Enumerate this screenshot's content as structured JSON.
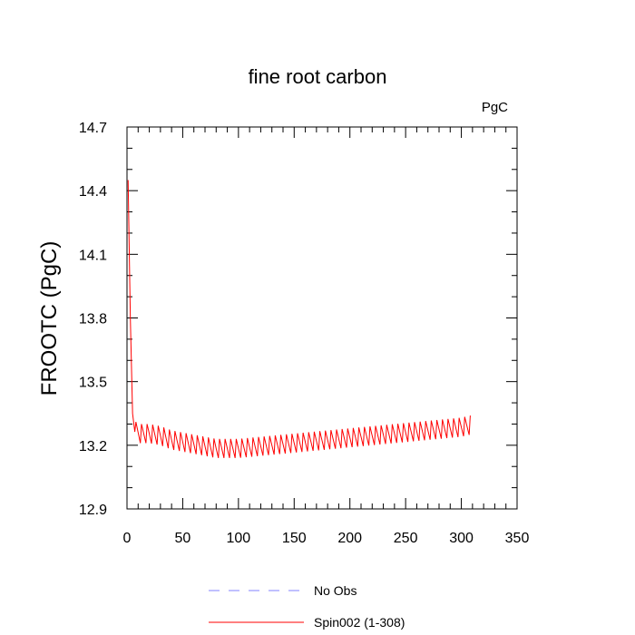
{
  "chart_data": {
    "type": "line",
    "title": "fine root carbon",
    "units_label": "PgC",
    "xlabel": "",
    "ylabel": "FROOTC  (PgC)",
    "xlim": [
      0,
      350
    ],
    "ylim": [
      12.9,
      14.7
    ],
    "x_ticks": [
      0,
      50,
      100,
      150,
      200,
      250,
      300,
      350
    ],
    "y_ticks": [
      12.9,
      13.2,
      13.5,
      13.8,
      14.1,
      14.4,
      14.7
    ],
    "x_tick_labels": [
      "0",
      "50",
      "100",
      "150",
      "200",
      "250",
      "300",
      "350"
    ],
    "y_tick_labels": [
      "12.9",
      "13.2",
      "13.5",
      "13.8",
      "14.1",
      "14.4",
      "14.7"
    ],
    "x_minor_step": 10,
    "y_minor_step": 0.1,
    "seasonal_amplitude": 0.09,
    "cycle_length_years": 5,
    "series": [
      {
        "name": "Spin002 (1-308)",
        "color": "#ff0000",
        "style": "solid",
        "envelope_x": [
          1,
          3,
          5,
          8,
          12,
          20,
          30,
          40,
          50,
          60,
          70,
          80,
          90,
          100,
          120,
          140,
          160,
          180,
          200,
          220,
          240,
          260,
          280,
          300,
          308
        ],
        "envelope_y": [
          14.45,
          13.8,
          13.35,
          13.22,
          13.21,
          13.21,
          13.2,
          13.18,
          13.17,
          13.16,
          13.15,
          13.14,
          13.14,
          13.14,
          13.15,
          13.16,
          13.17,
          13.18,
          13.19,
          13.2,
          13.21,
          13.22,
          13.23,
          13.24,
          13.25
        ]
      },
      {
        "name": "No Obs",
        "color": "#8080ff",
        "style": "dashed",
        "envelope_x": [],
        "envelope_y": []
      }
    ],
    "legend": {
      "placement": "bottom-center",
      "entries": [
        {
          "label": "No Obs",
          "color": "#8080ff",
          "style": "dashed"
        },
        {
          "label": "Spin002 (1-308)",
          "color": "#ff0000",
          "style": "solid"
        }
      ]
    }
  }
}
